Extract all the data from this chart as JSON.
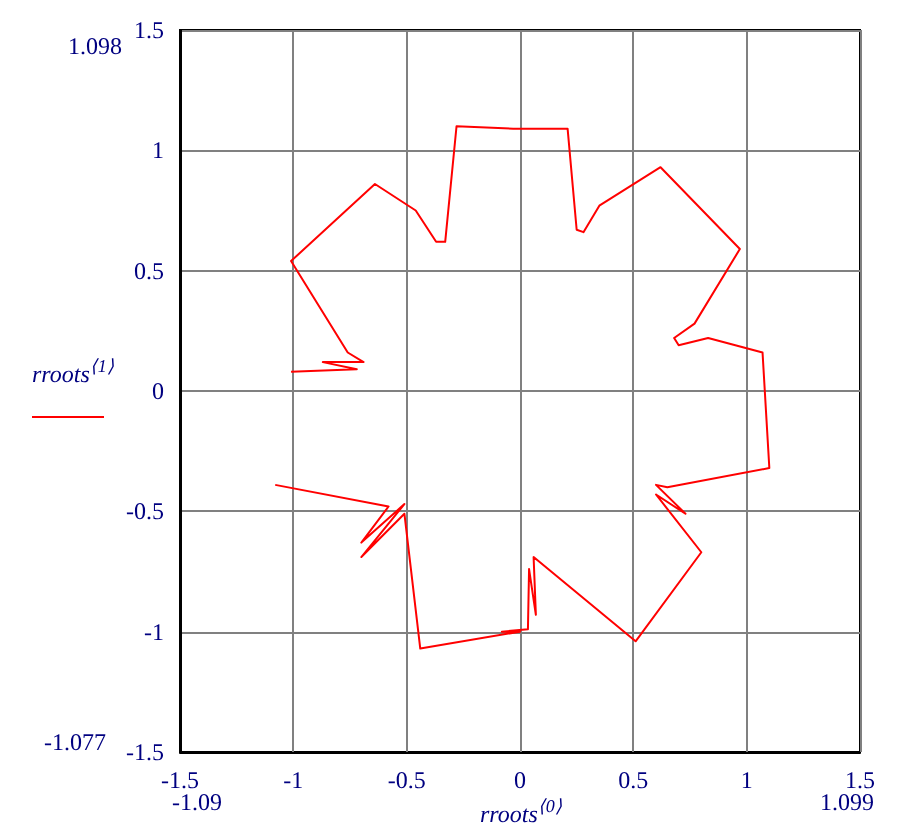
{
  "chart_data": {
    "type": "line",
    "xlabel": "rroots$^{⟨0⟩}$",
    "ylabel": "rroots$^{⟨1⟩}$",
    "annotations": [
      "1.098",
      "-1.077",
      "-1.09",
      "1.099"
    ],
    "xlim": [
      -1.5,
      1.5
    ],
    "xticks": [
      -1.5,
      -1,
      -0.5,
      0,
      0.5,
      1,
      1.5
    ],
    "ylim": [
      -1.5,
      1.5
    ],
    "yticks": [
      -1.5,
      -1,
      -0.5,
      0,
      0.5,
      1,
      1.5
    ],
    "grid": true,
    "marker": "none",
    "line_style": "solid",
    "series": [
      {
        "color": "#ff0000",
        "x": [
          -1.01,
          -0.72,
          -0.87,
          -0.69,
          -0.76,
          -1.01,
          -0.64,
          -0.46,
          -0.37,
          -0.33,
          -0.28,
          -0.03,
          0.21,
          0.25,
          0.28,
          0.35,
          0.62,
          0.97,
          0.77,
          0.68,
          0.7,
          0.83,
          1.07,
          1.1,
          0.65,
          0.6,
          0.73,
          0.6,
          0.8,
          0.51,
          0.06,
          0.07,
          0.04,
          0.035,
          -0.08,
          0,
          -0.44,
          -0.51,
          -0.7,
          -0.51,
          -0.7,
          -0.58,
          -1.08
        ],
        "values": [
          0.08,
          0.09,
          0.12,
          0.12,
          0.16,
          0.54,
          0.86,
          0.75,
          0.62,
          0.62,
          1.1,
          1.09,
          1.09,
          0.67,
          0.66,
          0.77,
          0.93,
          0.59,
          0.28,
          0.22,
          0.19,
          0.22,
          0.16,
          -0.32,
          -0.4,
          -0.39,
          -0.51,
          -0.43,
          -0.67,
          -1.04,
          -0.69,
          -0.93,
          -0.74,
          -0.99,
          -1.0,
          -1.0,
          -1.07,
          -0.51,
          -0.69,
          -0.47,
          -0.63,
          -0.48,
          -0.39
        ]
      }
    ]
  }
}
